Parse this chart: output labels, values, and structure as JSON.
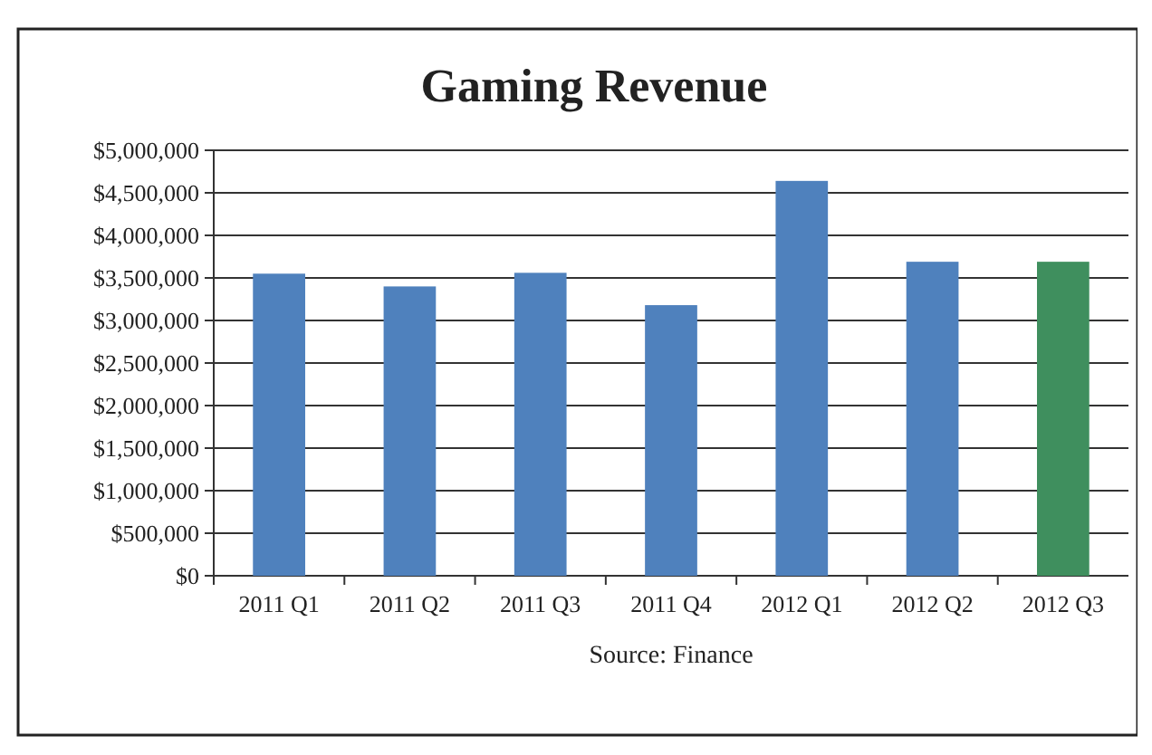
{
  "chart_data": {
    "type": "bar",
    "title": "Gaming Revenue",
    "categories": [
      "2011 Q1",
      "2011 Q2",
      "2011 Q3",
      "2011 Q4",
      "2012 Q1",
      "2012 Q2",
      "2012 Q3"
    ],
    "values": [
      3550000,
      3400000,
      3560000,
      3180000,
      4640000,
      3690000,
      3690000
    ],
    "colors": [
      "#4f81bd",
      "#4f81bd",
      "#4f81bd",
      "#4f81bd",
      "#4f81bd",
      "#4f81bd",
      "#3f8f5e"
    ],
    "ylim": [
      0,
      5000000
    ],
    "yticks": [
      {
        "value": 0,
        "label": "$0"
      },
      {
        "value": 500000,
        "label": "$500,000"
      },
      {
        "value": 1000000,
        "label": "$1,000,000"
      },
      {
        "value": 1500000,
        "label": "$1,500,000"
      },
      {
        "value": 2000000,
        "label": "$2,000,000"
      },
      {
        "value": 2500000,
        "label": "$2,500,000"
      },
      {
        "value": 3000000,
        "label": "$3,000,000"
      },
      {
        "value": 3500000,
        "label": "$3,500,000"
      },
      {
        "value": 4000000,
        "label": "$4,000,000"
      },
      {
        "value": 4500000,
        "label": "$4,500,000"
      },
      {
        "value": 5000000,
        "label": "$5,000,000"
      }
    ],
    "grid": "y",
    "annotations": [
      "Source: Finance"
    ]
  }
}
